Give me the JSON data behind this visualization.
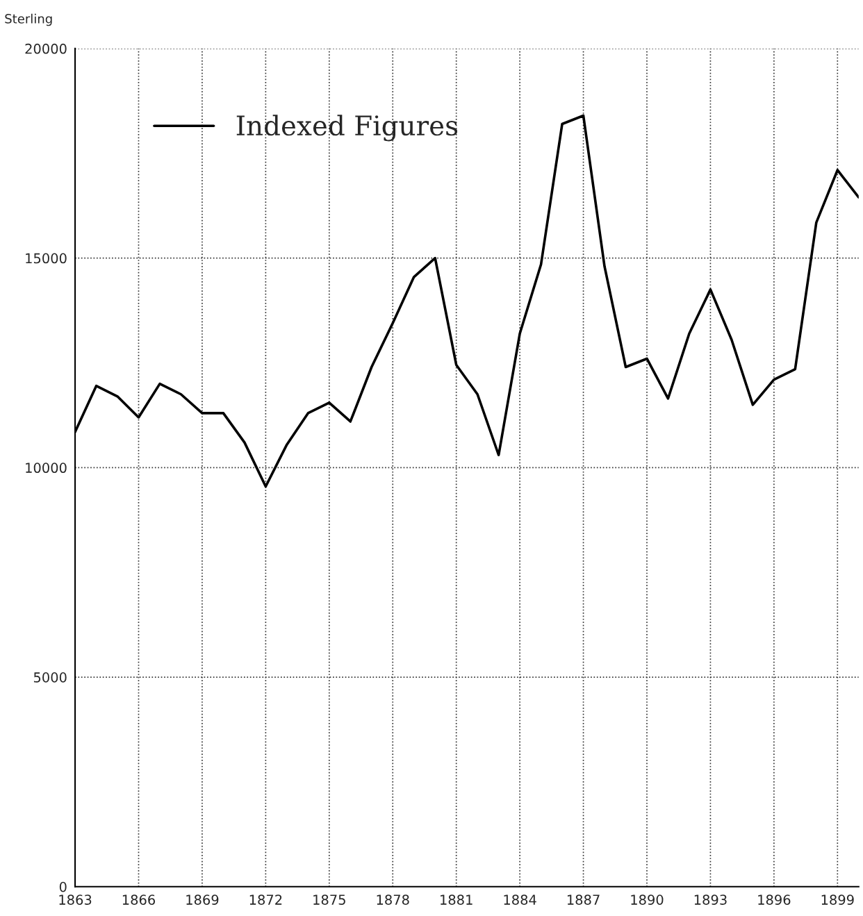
{
  "chart_data": {
    "type": "line",
    "ylabel": "Sterling",
    "x": [
      1863,
      1864,
      1865,
      1866,
      1867,
      1868,
      1869,
      1870,
      1871,
      1872,
      1873,
      1874,
      1875,
      1876,
      1877,
      1878,
      1879,
      1880,
      1881,
      1882,
      1883,
      1884,
      1885,
      1886,
      1887,
      1888,
      1889,
      1890,
      1891,
      1892,
      1893,
      1894,
      1895,
      1896,
      1897,
      1898,
      1899,
      1900
    ],
    "series": [
      {
        "name": "Indexed Figures",
        "color": "#000000",
        "values": [
          10850,
          11950,
          11700,
          11200,
          12000,
          11750,
          11300,
          11300,
          10600,
          9550,
          10550,
          11300,
          11550,
          11100,
          12400,
          13450,
          14550,
          15000,
          12450,
          11750,
          10300,
          13200,
          14850,
          18200,
          18400,
          14800,
          12400,
          12600,
          11650,
          13200,
          14250,
          13050,
          11500,
          12100,
          12350,
          15850,
          17100,
          16450
        ]
      }
    ],
    "xlim": [
      1863,
      1900
    ],
    "ylim": [
      0,
      20000
    ],
    "xticks": [
      1863,
      1866,
      1869,
      1872,
      1875,
      1878,
      1881,
      1884,
      1887,
      1890,
      1893,
      1896,
      1899
    ],
    "yticks": [
      0,
      5000,
      10000,
      15000,
      20000
    ],
    "grid": true,
    "legend": "top left",
    "line_style": "solid",
    "marker": "none"
  }
}
